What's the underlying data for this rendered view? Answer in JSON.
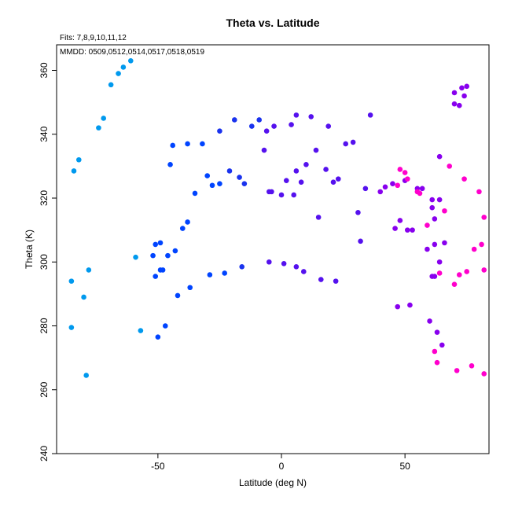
{
  "chart_data": {
    "type": "scatter",
    "title": "Theta vs. Latitude",
    "subtitle_fits": "Fits: 7,8,9,10,11,12",
    "subtitle_mmdd": "MMDD: 0509,0512,0514,0517,0518,0519",
    "xlabel": "Latitude (deg N)",
    "ylabel": "Theta (K)",
    "xlim": [
      -91,
      84
    ],
    "ylim": [
      240,
      368
    ],
    "xticks": [
      -50,
      0,
      50
    ],
    "yticks": [
      240,
      260,
      280,
      300,
      320,
      340,
      360
    ],
    "grid": false,
    "colors": {
      "fit_7": "#0099ee",
      "fit_8": "#0044ff",
      "fit_9": "#1a33ee",
      "fit_10": "#5511ee",
      "fit_11": "#8800ee",
      "fit_12": "#ff00cc"
    },
    "series": [
      {
        "color_key": "fit_7",
        "points": [
          [
            -61,
            363
          ],
          [
            -64,
            361
          ],
          [
            -66,
            359
          ],
          [
            -69,
            355.5
          ],
          [
            -72,
            345
          ],
          [
            -74,
            342
          ],
          [
            -82,
            332
          ],
          [
            -84,
            328.5
          ],
          [
            -59,
            301.5
          ],
          [
            -78,
            297.5
          ],
          [
            -85,
            294
          ],
          [
            -80,
            289
          ],
          [
            -85,
            279.5
          ],
          [
            -57,
            278.5
          ],
          [
            -79,
            264.5
          ]
        ]
      },
      {
        "color_key": "fit_8",
        "points": [
          [
            -44,
            336.5
          ],
          [
            -38,
            337
          ],
          [
            -32,
            337
          ],
          [
            -45,
            330.5
          ],
          [
            -30,
            327
          ],
          [
            -28,
            324
          ],
          [
            -25,
            324.5
          ],
          [
            -35,
            321.5
          ],
          [
            -38,
            312.5
          ],
          [
            -40,
            310.5
          ],
          [
            -51,
            305.5
          ],
          [
            -49,
            306
          ],
          [
            -43,
            303.5
          ],
          [
            -52,
            302
          ],
          [
            -46,
            302
          ],
          [
            -49,
            297.5
          ],
          [
            -51,
            295.5
          ],
          [
            -48,
            297.5
          ],
          [
            -29,
            296
          ],
          [
            -23,
            296.5
          ],
          [
            -37,
            292
          ],
          [
            -42,
            289.5
          ],
          [
            -47,
            280
          ],
          [
            -50,
            276.5
          ]
        ]
      },
      {
        "color_key": "fit_9",
        "points": [
          [
            -25,
            341
          ],
          [
            -19,
            344.5
          ],
          [
            -12,
            342.5
          ],
          [
            -9,
            344.5
          ],
          [
            -21,
            328.5
          ],
          [
            -17,
            326.5
          ],
          [
            -15,
            324.5
          ],
          [
            -16,
            298.5
          ]
        ]
      },
      {
        "color_key": "fit_10",
        "points": [
          [
            -3,
            342.5
          ],
          [
            -6,
            341
          ],
          [
            4,
            343
          ],
          [
            6,
            346
          ],
          [
            12,
            345.5
          ],
          [
            19,
            342.5
          ],
          [
            14,
            335
          ],
          [
            26,
            337
          ],
          [
            29,
            337.5
          ],
          [
            36,
            346
          ],
          [
            -7,
            335
          ],
          [
            10,
            330.5
          ],
          [
            6,
            328.5
          ],
          [
            18,
            329
          ],
          [
            2,
            325.5
          ],
          [
            8,
            325
          ],
          [
            23,
            326
          ],
          [
            21,
            325
          ],
          [
            34,
            323
          ],
          [
            -5,
            322
          ],
          [
            -4,
            322
          ],
          [
            0,
            321
          ],
          [
            5,
            321
          ],
          [
            15,
            314
          ],
          [
            31,
            315.5
          ],
          [
            32,
            306.5
          ],
          [
            -5,
            300
          ],
          [
            1,
            299.5
          ],
          [
            6,
            298.5
          ],
          [
            9,
            297
          ],
          [
            16,
            294.5
          ],
          [
            22,
            294
          ]
        ]
      },
      {
        "color_key": "fit_11",
        "points": [
          [
            70,
            353
          ],
          [
            73,
            354.5
          ],
          [
            75,
            355
          ],
          [
            74,
            352
          ],
          [
            70,
            349.5
          ],
          [
            72,
            349
          ],
          [
            64,
            333
          ],
          [
            50,
            325.5
          ],
          [
            45,
            324.5
          ],
          [
            42,
            323.5
          ],
          [
            40,
            322
          ],
          [
            55,
            323
          ],
          [
            57,
            323
          ],
          [
            61,
            319.5
          ],
          [
            64,
            319.5
          ],
          [
            61,
            317
          ],
          [
            48,
            313
          ],
          [
            46,
            310.5
          ],
          [
            51,
            310
          ],
          [
            53,
            310
          ],
          [
            62,
            313.5
          ],
          [
            66,
            306
          ],
          [
            62,
            305.5
          ],
          [
            59,
            304
          ],
          [
            64,
            300
          ],
          [
            61,
            295.5
          ],
          [
            62,
            295.5
          ],
          [
            47,
            286
          ],
          [
            52,
            286.5
          ],
          [
            60,
            281.5
          ],
          [
            63,
            278
          ],
          [
            65,
            274
          ]
        ]
      },
      {
        "color_key": "fit_12",
        "points": [
          [
            48,
            329
          ],
          [
            50,
            328
          ],
          [
            68,
            330
          ],
          [
            51,
            326
          ],
          [
            55,
            322
          ],
          [
            56,
            321.5
          ],
          [
            47,
            324
          ],
          [
            74,
            326
          ],
          [
            80,
            322
          ],
          [
            66,
            316
          ],
          [
            82,
            314
          ],
          [
            59,
            311.5
          ],
          [
            81,
            305.5
          ],
          [
            78,
            304
          ],
          [
            64,
            296.5
          ],
          [
            75,
            297
          ],
          [
            82,
            297.5
          ],
          [
            72,
            296
          ],
          [
            70,
            293
          ],
          [
            62,
            272
          ],
          [
            63,
            268.5
          ],
          [
            71,
            266
          ],
          [
            77,
            267.5
          ],
          [
            82,
            265
          ]
        ]
      }
    ]
  }
}
